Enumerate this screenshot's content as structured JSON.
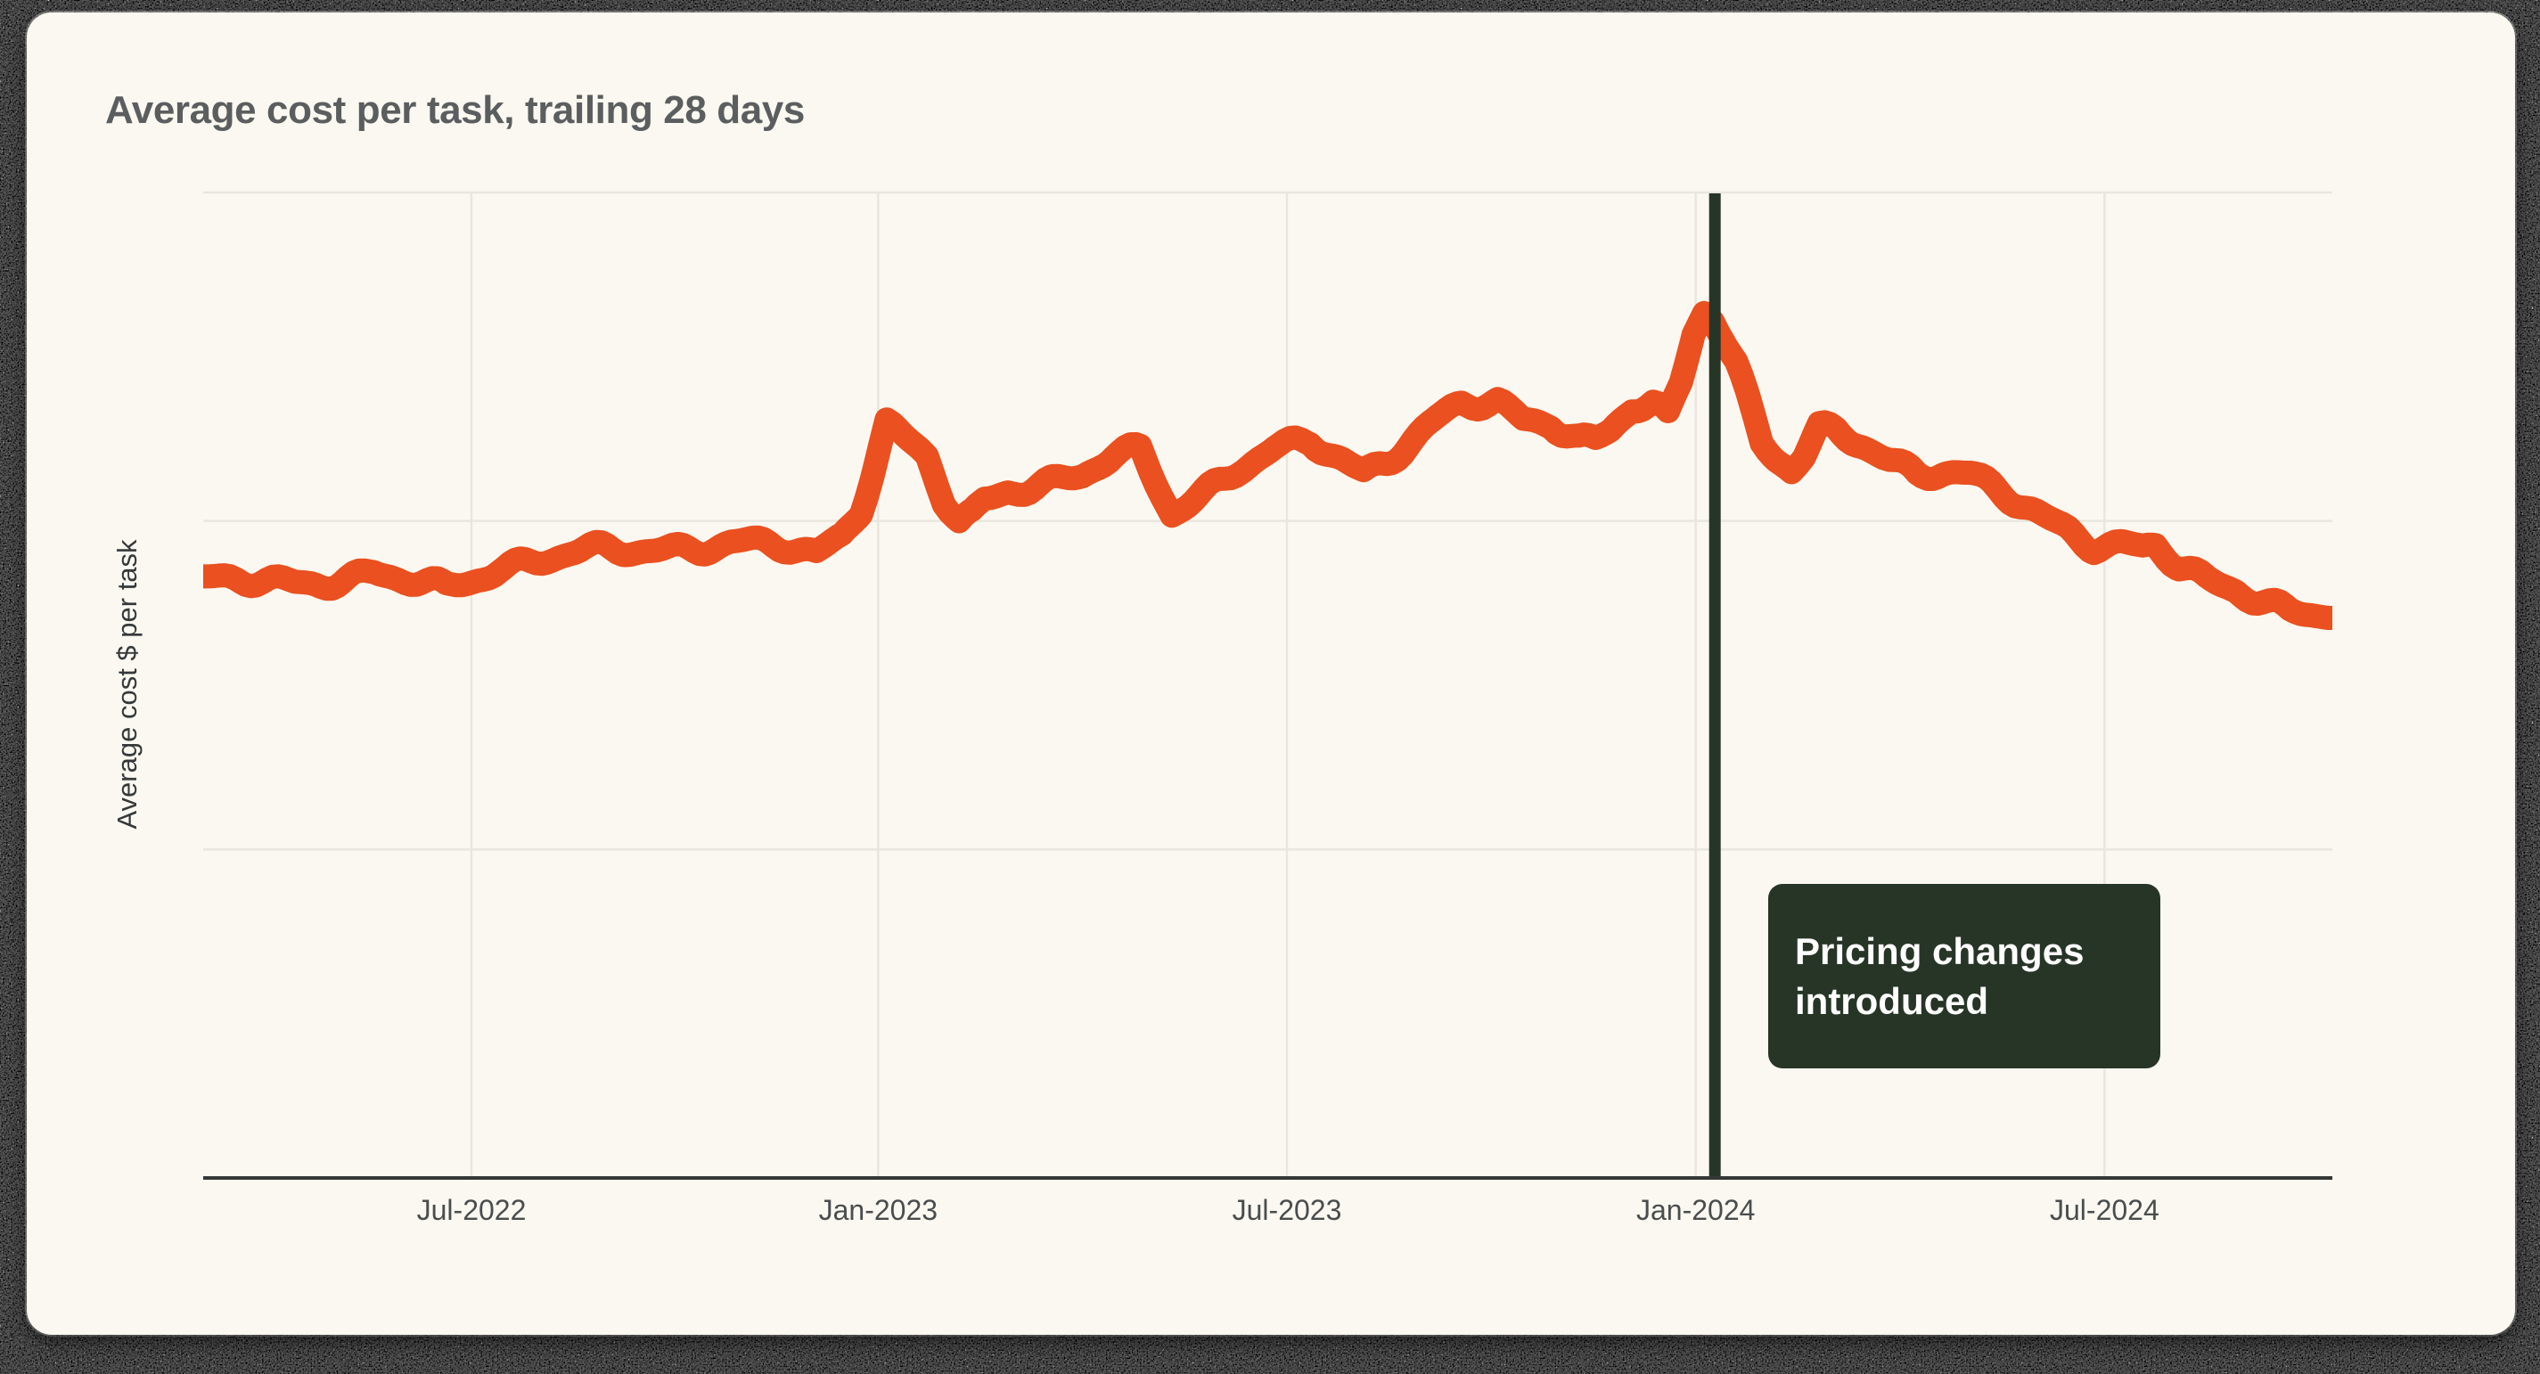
{
  "palette": {
    "card": "#faf8f0",
    "title_text": "#5b5e5f",
    "ylabel_text": "#35393a",
    "axis_text": "#494d4e",
    "axis_line": "#343836",
    "gridline": "#e9e6dd",
    "noise_dark": "#111111",
    "accent_line": "#ea5020",
    "annotation": "#273527",
    "annotation_text": "#ffffff"
  },
  "chart_data": {
    "type": "line",
    "title": "Average cost per task, trailing 28 days",
    "xlabel": "",
    "ylabel": "Average cost $ per task",
    "grid": true,
    "legend": false,
    "x_ticks": [
      {
        "label": "Jul-2022",
        "pos": 0.126
      },
      {
        "label": "Jan-2023",
        "pos": 0.317
      },
      {
        "label": "Jul-2023",
        "pos": 0.509
      },
      {
        "label": "Jan-2024",
        "pos": 0.701
      },
      {
        "label": "Jul-2024",
        "pos": 0.893
      }
    ],
    "x_range_note": "pos is fraction of x-axis; axis spans ~Mar-2022 to ~Oct-2024",
    "y_axis": {
      "min": 0,
      "max": 3,
      "gridline_values": [
        1,
        2,
        3
      ],
      "tick_labels_visible": false,
      "note": "y axis has no numeric labels; values are in gridline units (1 unit = gridline spacing)"
    },
    "series": [
      {
        "name": "Average cost $ per task, trailing 28 days",
        "color": "#ea5020",
        "points": [
          [
            0.0,
            1.82
          ],
          [
            0.043,
            1.81
          ],
          [
            0.08,
            1.84
          ],
          [
            0.114,
            1.79
          ],
          [
            0.139,
            1.86
          ],
          [
            0.172,
            1.9
          ],
          [
            0.198,
            1.91
          ],
          [
            0.223,
            1.92
          ],
          [
            0.248,
            1.93
          ],
          [
            0.273,
            1.92
          ],
          [
            0.288,
            1.9
          ],
          [
            0.3,
            1.96
          ],
          [
            0.309,
            2.05
          ],
          [
            0.315,
            2.17
          ],
          [
            0.321,
            2.3
          ],
          [
            0.329,
            2.25
          ],
          [
            0.34,
            2.19
          ],
          [
            0.348,
            2.06
          ],
          [
            0.355,
            1.99
          ],
          [
            0.361,
            2.01
          ],
          [
            0.367,
            2.06
          ],
          [
            0.378,
            2.1
          ],
          [
            0.399,
            2.12
          ],
          [
            0.413,
            2.14
          ],
          [
            0.428,
            2.19
          ],
          [
            0.44,
            2.21
          ],
          [
            0.455,
            2.03
          ],
          [
            0.47,
            2.09
          ],
          [
            0.486,
            2.16
          ],
          [
            0.503,
            2.21
          ],
          [
            0.52,
            2.24
          ],
          [
            0.535,
            2.19
          ],
          [
            0.545,
            2.15
          ],
          [
            0.556,
            2.19
          ],
          [
            0.566,
            2.24
          ],
          [
            0.579,
            2.3
          ],
          [
            0.591,
            2.35
          ],
          [
            0.608,
            2.36
          ],
          [
            0.62,
            2.31
          ],
          [
            0.633,
            2.31
          ],
          [
            0.646,
            2.25
          ],
          [
            0.654,
            2.24
          ],
          [
            0.661,
            2.27
          ],
          [
            0.671,
            2.34
          ],
          [
            0.681,
            2.35
          ],
          [
            0.688,
            2.31
          ],
          [
            0.694,
            2.42
          ],
          [
            0.7,
            2.58
          ],
          [
            0.705,
            2.65
          ],
          [
            0.709,
            2.63
          ],
          [
            0.713,
            2.58
          ],
          [
            0.72,
            2.48
          ],
          [
            0.726,
            2.36
          ],
          [
            0.732,
            2.24
          ],
          [
            0.739,
            2.19
          ],
          [
            0.746,
            2.15
          ],
          [
            0.752,
            2.19
          ],
          [
            0.759,
            2.27
          ],
          [
            0.767,
            2.27
          ],
          [
            0.779,
            2.24
          ],
          [
            0.792,
            2.19
          ],
          [
            0.805,
            2.15
          ],
          [
            0.817,
            2.15
          ],
          [
            0.83,
            2.13
          ],
          [
            0.846,
            2.08
          ],
          [
            0.863,
            2.02
          ],
          [
            0.876,
            1.98
          ],
          [
            0.888,
            1.93
          ],
          [
            0.902,
            1.92
          ],
          [
            0.911,
            1.91
          ],
          [
            0.917,
            1.92
          ],
          [
            0.928,
            1.86
          ],
          [
            0.941,
            1.82
          ],
          [
            0.955,
            1.8
          ],
          [
            0.968,
            1.76
          ],
          [
            0.98,
            1.72
          ],
          [
            0.993,
            1.71
          ],
          [
            1.0,
            1.71
          ]
        ]
      }
    ],
    "annotations": [
      {
        "type": "vline",
        "pos": 0.71,
        "color": "#273527",
        "label": "Pricing changes introduced",
        "label_lines": [
          "Pricing changes",
          "introduced"
        ]
      }
    ]
  }
}
